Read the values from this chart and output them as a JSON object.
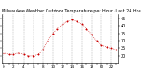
{
  "title": "Milwaukee Weather Outdoor Temperature per Hour (Last 24 Hours)",
  "hours": [
    0,
    1,
    2,
    3,
    4,
    5,
    6,
    7,
    8,
    9,
    10,
    11,
    12,
    13,
    14,
    15,
    16,
    17,
    18,
    19,
    20,
    21,
    22,
    23
  ],
  "temps": [
    22,
    21,
    21,
    22,
    21,
    20,
    20,
    21,
    24,
    30,
    35,
    38,
    41,
    43,
    44,
    43,
    41,
    38,
    34,
    30,
    27,
    26,
    25,
    24
  ],
  "line_color": "#cc0000",
  "dot_color": "#cc0000",
  "bg_color": "#ffffff",
  "grid_color": "#999999",
  "title_color": "#000000",
  "ylim": [
    15,
    48
  ],
  "yticks": [
    20,
    25,
    30,
    35,
    40,
    45
  ],
  "ytick_labels": [
    "20",
    "25",
    "30",
    "35",
    "40",
    "45"
  ],
  "ylabel_fontsize": 3.5,
  "title_fontsize": 3.5
}
